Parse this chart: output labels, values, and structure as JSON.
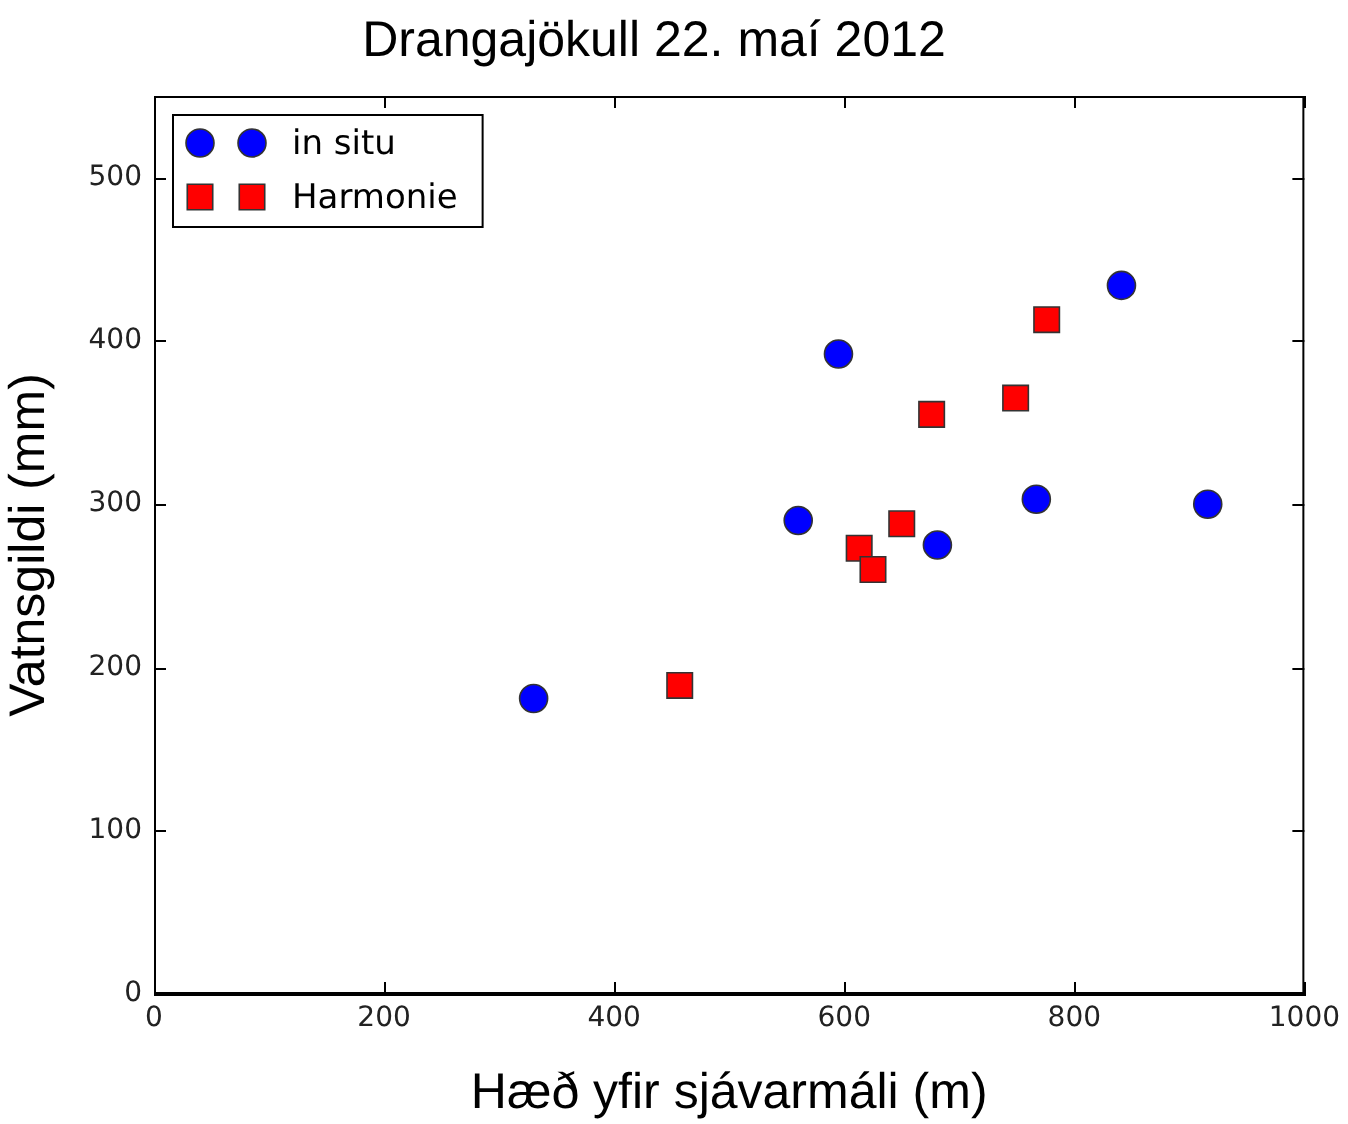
{
  "chart_data": {
    "type": "scatter",
    "title": "Drangajökull 22. maí 2012",
    "xlabel": "Hæð yfir sjávarmáli (m)",
    "ylabel": "Vatnsgildi (mm)",
    "xlim": [
      0,
      1000
    ],
    "xticks": [
      0,
      200,
      400,
      600,
      800,
      1000
    ],
    "ylim": [
      0,
      550
    ],
    "yticks": [
      0,
      100,
      200,
      300,
      400,
      500
    ],
    "grid": false,
    "legend": "top left",
    "series": [
      {
        "name": "in situ",
        "color": "#0000ff",
        "marker": "circle",
        "x": [
          330,
          560,
          595,
          681,
          767,
          841,
          916
        ],
        "values": [
          181,
          290,
          392,
          275,
          303,
          434,
          300
        ]
      },
      {
        "name": "Harmonie",
        "color": "#ff0000",
        "marker": "square",
        "x": [
          457,
          613,
          625,
          650,
          676,
          749,
          776
        ],
        "values": [
          189,
          273,
          260,
          288,
          355,
          365,
          413
        ]
      }
    ]
  }
}
